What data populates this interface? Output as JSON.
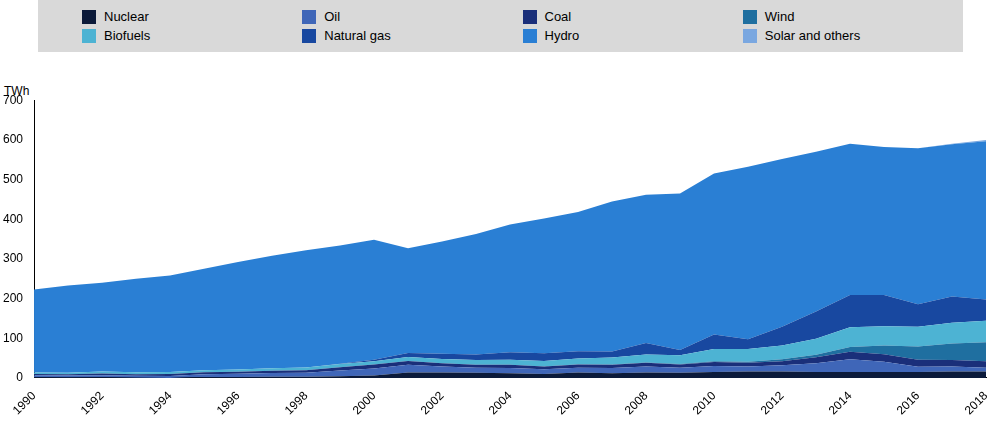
{
  "chart_data": {
    "type": "area",
    "y_label": "TWh",
    "categories": [
      "1990",
      null,
      "1992",
      null,
      "1994",
      null,
      "1996",
      null,
      "1998",
      null,
      "2000",
      null,
      "2002",
      null,
      "2004",
      null,
      "2006",
      null,
      "2008",
      null,
      "2010",
      null,
      "2012",
      null,
      "2014",
      null,
      "2016",
      null,
      "2018"
    ],
    "series": [
      {
        "name": "Nuclear",
        "color": "#0b1a3a",
        "values": [
          2,
          1,
          2,
          0.5,
          0,
          2.5,
          2.4,
          3.2,
          3.3,
          4,
          6,
          14,
          14,
          13,
          12,
          10,
          14,
          12,
          14,
          13,
          15,
          16,
          16,
          15,
          15,
          15,
          15,
          16,
          16
        ]
      },
      {
        "name": "Oil",
        "color": "#3f66b8",
        "values": [
          5,
          5,
          5,
          5,
          5,
          7,
          8,
          9,
          10,
          15,
          18,
          19,
          15,
          13,
          13,
          12,
          12,
          13,
          15,
          13,
          15,
          13,
          16,
          22,
          32,
          26,
          13,
          13,
          10
        ]
      },
      {
        "name": "Coal",
        "color": "#1a2f7a",
        "values": [
          3,
          3,
          4,
          4,
          5,
          5,
          5,
          6,
          6,
          8,
          10,
          10,
          8,
          7,
          8,
          7,
          8,
          8,
          9,
          8,
          10,
          9,
          10,
          15,
          19,
          19,
          18,
          16,
          16
        ]
      },
      {
        "name": "Wind",
        "color": "#1f6fa0",
        "values": [
          0,
          0,
          0,
          0,
          0,
          0,
          0,
          0,
          0,
          0,
          0,
          0,
          0,
          0,
          0,
          0,
          0.2,
          0.7,
          1.2,
          1.2,
          2.2,
          2.7,
          5,
          6.6,
          12,
          22,
          33,
          42,
          48
        ]
      },
      {
        "name": "Biofuels",
        "color": "#4db3d3",
        "values": [
          4,
          4,
          5,
          5,
          5,
          5,
          6,
          6,
          7,
          8,
          8,
          10,
          11,
          12,
          13,
          14,
          15,
          18,
          20,
          22,
          31,
          32,
          35,
          40,
          50,
          48,
          50,
          52,
          54
        ]
      },
      {
        "name": "Natural gas",
        "color": "#1848a0",
        "values": [
          0,
          0,
          0,
          0,
          0,
          0,
          0,
          0,
          0,
          1,
          4,
          10,
          13,
          14,
          19,
          19,
          18,
          15,
          29,
          13,
          36,
          25,
          47,
          69,
          81,
          79,
          57,
          66,
          54
        ]
      },
      {
        "name": "Hydro",
        "color": "#2a7fd4",
        "values": [
          209,
          220,
          224,
          235.5,
          243,
          255.5,
          270.6,
          283.8,
          295.7,
          298,
          302,
          264,
          283,
          304,
          322,
          340,
          350.8,
          378.3,
          373.8,
          394.8,
          405.8,
          434.3,
          423,
          402.4,
          381,
          373,
          393,
          384,
          398.5
        ]
      },
      {
        "name": "Solar and others",
        "color": "#7aa7e0",
        "values": [
          0,
          0,
          0,
          0,
          0,
          0,
          0,
          0,
          0,
          0,
          0,
          0,
          0,
          0,
          0,
          0,
          0,
          0,
          0,
          0,
          0,
          0,
          0,
          0,
          0,
          0,
          0,
          1,
          3.5
        ]
      }
    ],
    "ylim": [
      0,
      700
    ],
    "yticks": [
      0,
      100,
      200,
      300,
      400,
      500,
      600,
      700
    ],
    "stacked": true,
    "grid": false,
    "legend": "top"
  }
}
